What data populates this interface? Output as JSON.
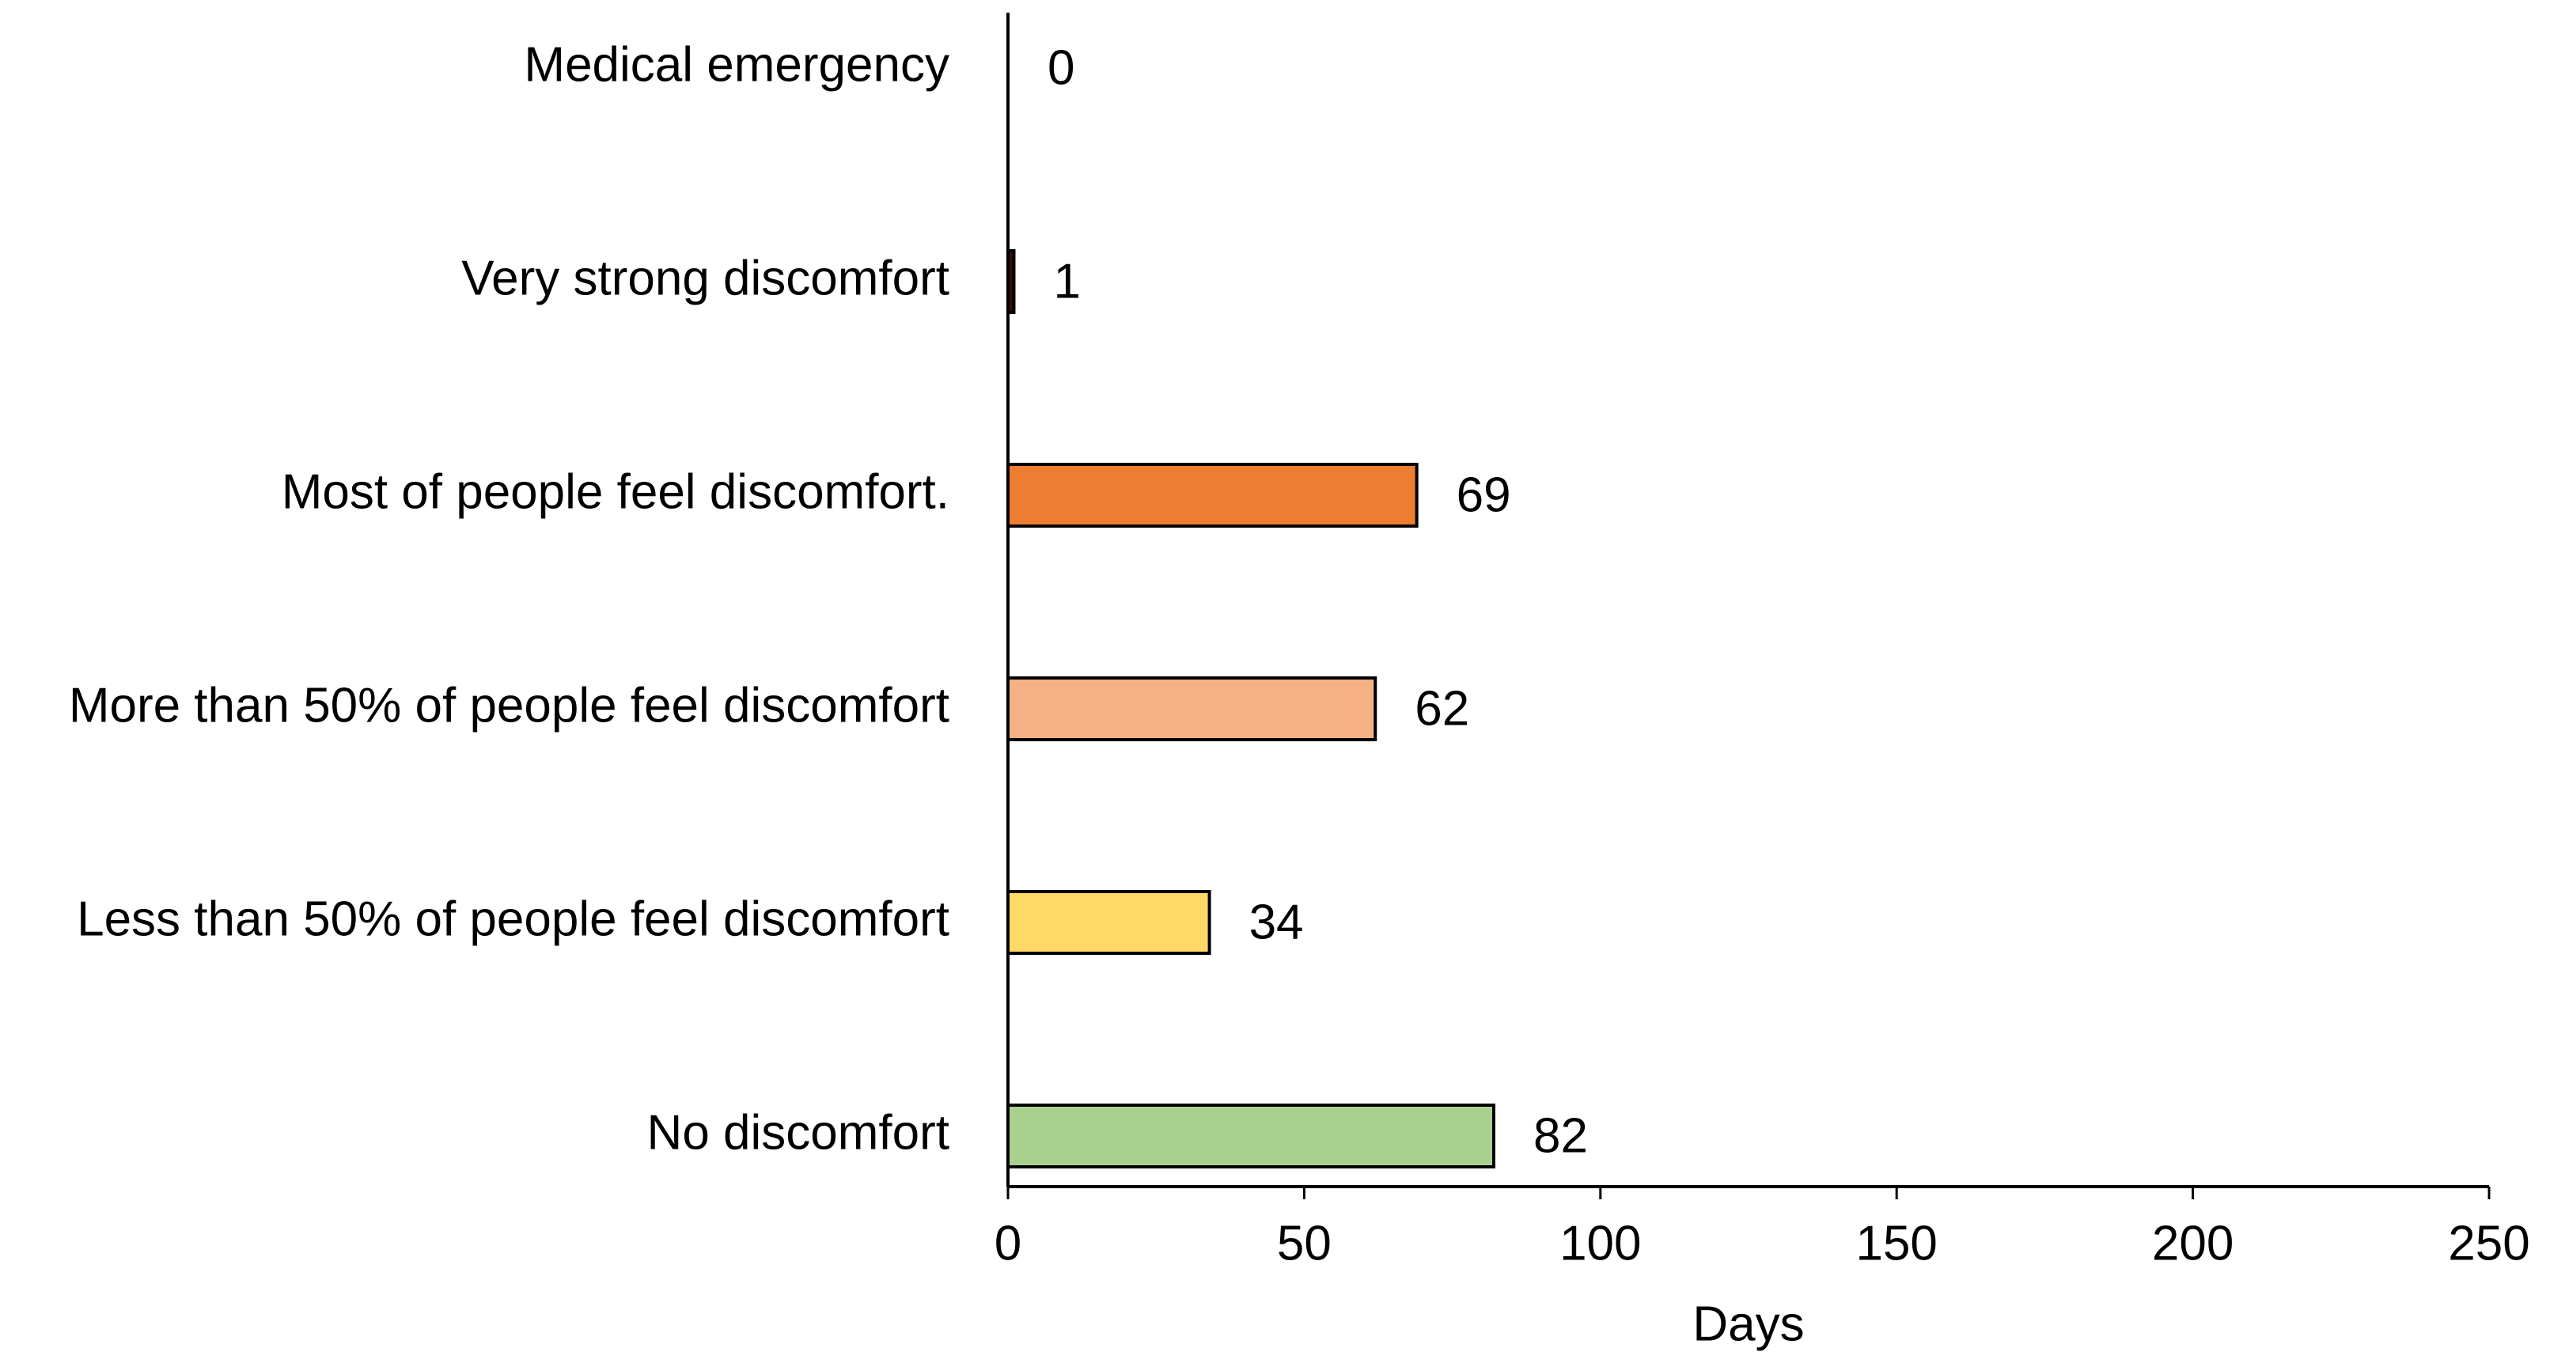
{
  "chart_data": {
    "type": "bar",
    "orientation": "horizontal",
    "categories": [
      "Medical emergency",
      "Very strong discomfort",
      "Most of people feel discomfort.",
      "More than 50% of people feel discomfort",
      "Less than 50% of people feel discomfort",
      "No discomfort"
    ],
    "values": [
      0,
      1,
      69,
      62,
      34,
      82
    ],
    "colors": [
      "#c00000",
      "#3b0d0d",
      "#ed7d31",
      "#f4b183",
      "#ffd966",
      "#a9d18e"
    ],
    "xlabel": "Days",
    "xlim": [
      0,
      250
    ],
    "xticks": [
      0,
      50,
      100,
      150,
      200,
      250
    ],
    "grid": false
  }
}
